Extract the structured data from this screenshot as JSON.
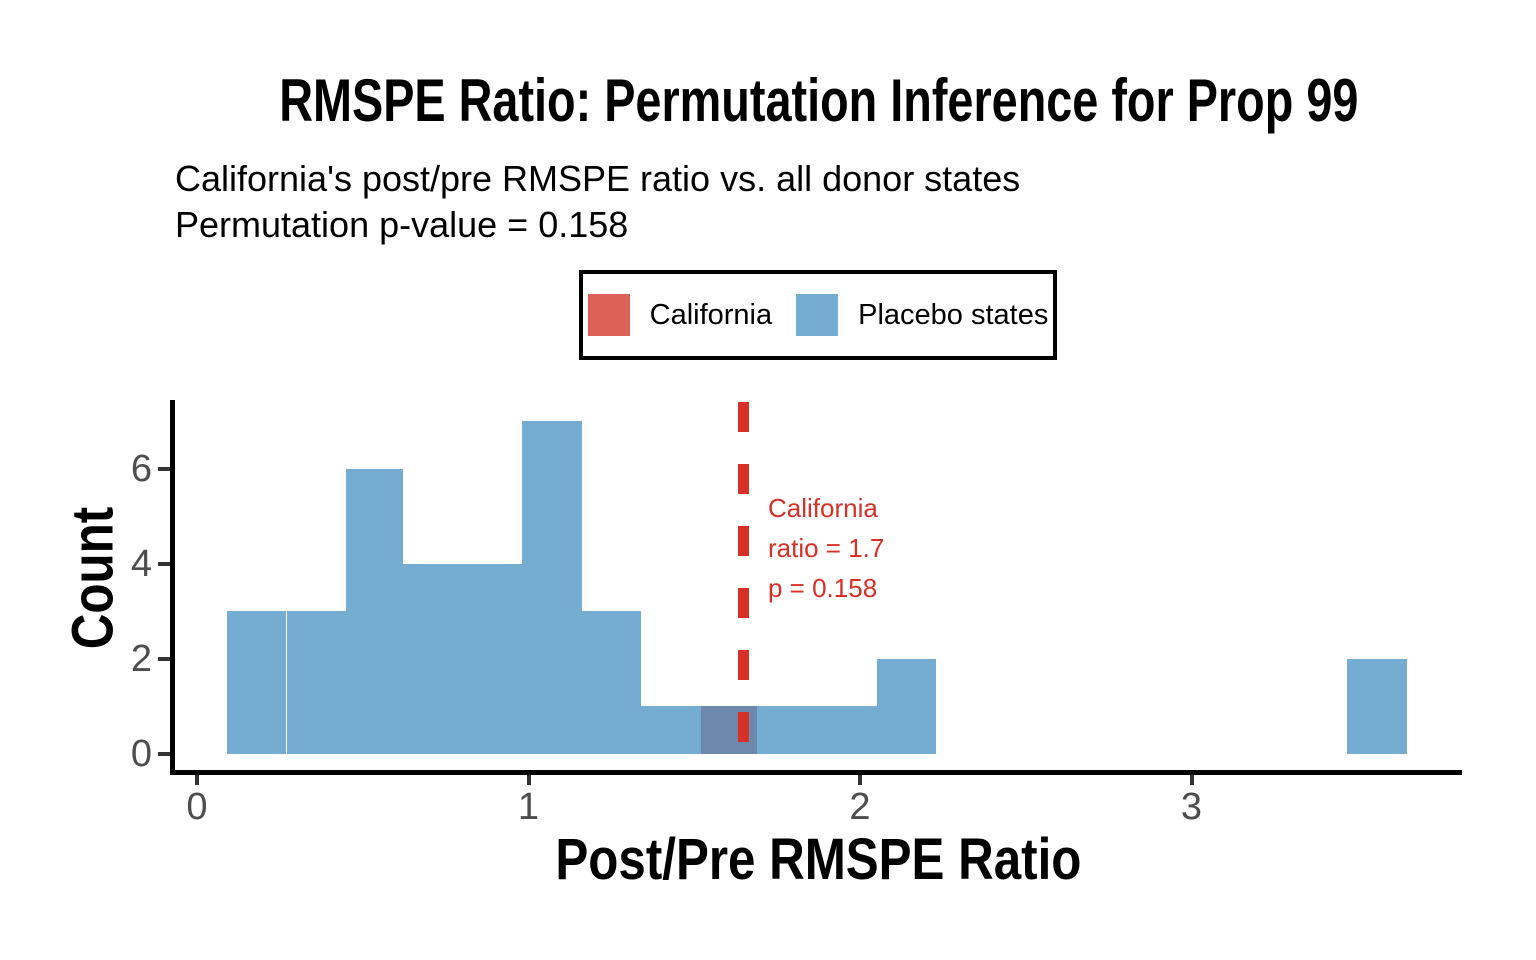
{
  "title": "RMSPE Ratio: Permutation Inference for Prop 99",
  "subtitle": {
    "line1": "California's post/pre RMSPE ratio vs. all donor states",
    "line2": "Permutation p-value = 0.158"
  },
  "legend": {
    "items": [
      {
        "label": "California",
        "color": "#DE6158"
      },
      {
        "label": "Placebo states",
        "color": "#74ADD1"
      }
    ]
  },
  "annotation": {
    "line1": "California",
    "line2": "ratio = 1.7",
    "line3": "p = 0.158"
  },
  "colors": {
    "background": "#FFFFFF",
    "placebo_fill": "#74ADD1",
    "california_fill": "#DE6158",
    "overlap_fill": "#6C89AB",
    "california_line": "#D73027",
    "annotation_text": "#D73027",
    "axis_line": "#000000",
    "tick_mark": "#333333",
    "tick_label": "#4D4D4D",
    "text": "#000000",
    "legend_border": "#000000"
  },
  "chart_data": {
    "type": "bar",
    "kind": "histogram",
    "title": "RMSPE Ratio: Permutation Inference for Prop 99",
    "subtitle": [
      "California's post/pre RMSPE ratio vs. all donor states",
      "Permutation p-value = 0.158"
    ],
    "xlabel": "Post/Pre RMSPE Ratio",
    "ylabel": "Count",
    "x_ticks": [
      0,
      1,
      2,
      3
    ],
    "y_ticks": [
      0,
      2,
      4,
      6
    ],
    "xlim": [
      -0.07,
      3.81
    ],
    "ylim": [
      0,
      7.4
    ],
    "grid": false,
    "legend_position": "top-center",
    "binwidth": 0.178,
    "series_name": "Placebo states",
    "bins": [
      {
        "x0": 0.09,
        "x1": 0.27,
        "count": 3
      },
      {
        "x0": 0.27,
        "x1": 0.45,
        "count": 3
      },
      {
        "x0": 0.45,
        "x1": 0.62,
        "count": 6
      },
      {
        "x0": 0.62,
        "x1": 0.8,
        "count": 4
      },
      {
        "x0": 0.8,
        "x1": 0.98,
        "count": 4
      },
      {
        "x0": 0.98,
        "x1": 1.16,
        "count": 7
      },
      {
        "x0": 1.16,
        "x1": 1.34,
        "count": 3
      },
      {
        "x0": 1.34,
        "x1": 1.52,
        "count": 1
      },
      {
        "x0": 1.52,
        "x1": 1.69,
        "count": 1,
        "california_overlap": true
      },
      {
        "x0": 1.69,
        "x1": 1.87,
        "count": 1
      },
      {
        "x0": 1.87,
        "x1": 2.05,
        "count": 1
      },
      {
        "x0": 2.05,
        "x1": 2.23,
        "count": 2
      },
      {
        "x0": 3.47,
        "x1": 3.65,
        "count": 2
      }
    ],
    "california": {
      "vline_x_estimate": 1.65,
      "ratio_label": "1.7",
      "p_value_label": "0.158",
      "count": 1,
      "bin": [
        1.52,
        1.69
      ]
    }
  }
}
